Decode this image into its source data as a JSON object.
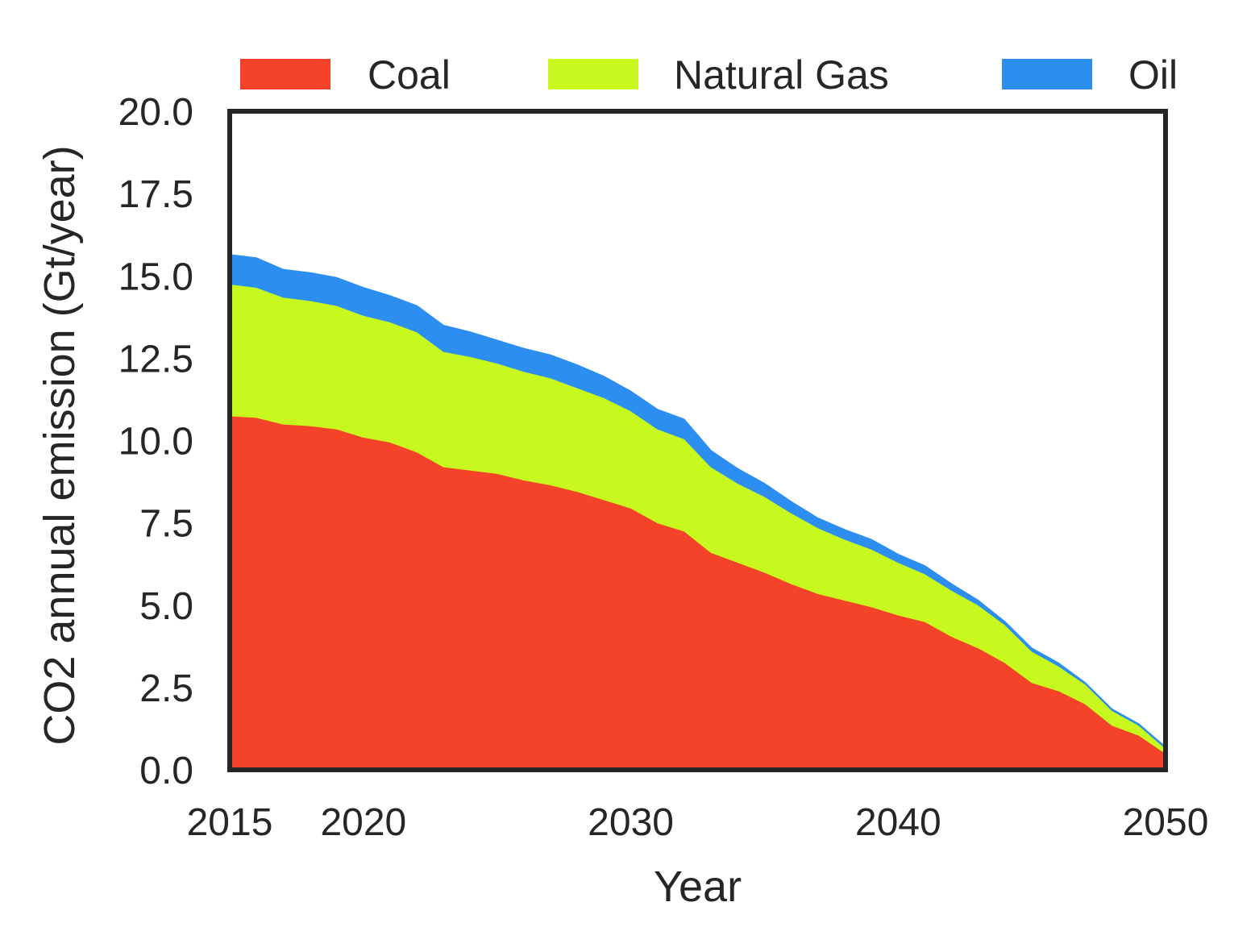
{
  "chart_data": {
    "type": "area",
    "stacked": true,
    "xlabel": "Year",
    "ylabel": "CO2 annual emission (Gt/year)",
    "xlim": [
      2015,
      2050
    ],
    "ylim": [
      0,
      20
    ],
    "xticks": [
      2015,
      2020,
      2030,
      2040,
      2050
    ],
    "yticks": [
      0.0,
      2.5,
      5.0,
      7.5,
      10.0,
      12.5,
      15.0,
      17.5,
      20.0
    ],
    "ytick_labels": [
      "0.0",
      "2.5",
      "5.0",
      "7.5",
      "10.0",
      "12.5",
      "15.0",
      "17.5",
      "20.0"
    ],
    "xtick_labels": [
      "2015",
      "2020",
      "2030",
      "2040",
      "2050"
    ],
    "grid": false,
    "legend_position": "top",
    "x": [
      2015,
      2016,
      2017,
      2018,
      2019,
      2020,
      2021,
      2022,
      2023,
      2024,
      2025,
      2026,
      2027,
      2028,
      2029,
      2030,
      2031,
      2032,
      2033,
      2034,
      2035,
      2036,
      2037,
      2038,
      2039,
      2040,
      2041,
      2042,
      2043,
      2044,
      2045,
      2046,
      2047,
      2048,
      2049,
      2050
    ],
    "series": [
      {
        "name": "Coal",
        "color": "#f44328",
        "values": [
          10.75,
          10.7,
          10.5,
          10.45,
          10.35,
          10.1,
          9.95,
          9.65,
          9.2,
          9.1,
          9.0,
          8.8,
          8.65,
          8.45,
          8.2,
          7.95,
          7.5,
          7.25,
          6.6,
          6.3,
          6.0,
          5.65,
          5.35,
          5.15,
          4.95,
          4.7,
          4.5,
          4.05,
          3.7,
          3.25,
          2.65,
          2.4,
          2.0,
          1.35,
          1.05,
          0.5
        ]
      },
      {
        "name": "Natural Gas",
        "color": "#c8f91e",
        "values": [
          4.0,
          3.95,
          3.85,
          3.8,
          3.75,
          3.7,
          3.65,
          3.65,
          3.5,
          3.45,
          3.35,
          3.3,
          3.25,
          3.15,
          3.1,
          2.95,
          2.85,
          2.8,
          2.6,
          2.4,
          2.3,
          2.15,
          2.0,
          1.85,
          1.75,
          1.6,
          1.45,
          1.4,
          1.3,
          1.15,
          0.95,
          0.75,
          0.6,
          0.45,
          0.3,
          0.15
        ]
      },
      {
        "name": "Oil",
        "color": "#2c8ef0",
        "values": [
          0.9,
          0.9,
          0.85,
          0.85,
          0.85,
          0.85,
          0.8,
          0.8,
          0.8,
          0.75,
          0.7,
          0.7,
          0.7,
          0.7,
          0.65,
          0.6,
          0.6,
          0.6,
          0.5,
          0.45,
          0.4,
          0.35,
          0.3,
          0.3,
          0.3,
          0.25,
          0.25,
          0.2,
          0.15,
          0.1,
          0.1,
          0.1,
          0.05,
          0.05,
          0.05,
          0.05
        ]
      }
    ]
  }
}
